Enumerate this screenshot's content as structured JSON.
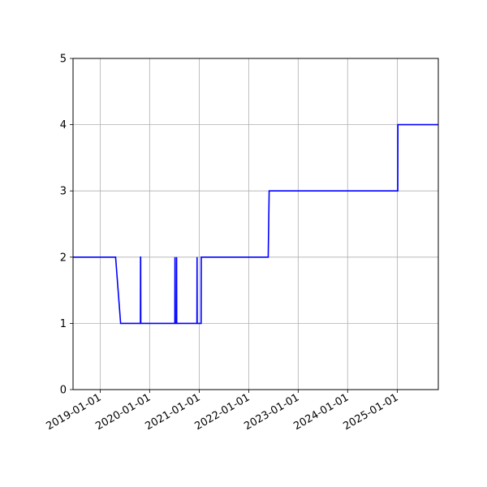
{
  "chart_data": {
    "type": "line",
    "title": "",
    "xlabel": "",
    "ylabel": "",
    "xlim": [
      "2018-06-15",
      "2025-10-31"
    ],
    "ylim": [
      0,
      5
    ],
    "x_tick_labels": [
      "2019-01-01",
      "2020-01-01",
      "2021-01-01",
      "2022-01-01",
      "2023-01-01",
      "2024-01-01",
      "2025-01-01"
    ],
    "y_tick_labels": [
      "0",
      "1",
      "2",
      "3",
      "4",
      "5"
    ],
    "grid": true,
    "legend": "none",
    "series": [
      {
        "color": "#0000ff",
        "x": [
          "2018-06-15",
          "2019-04-25",
          "2019-06-01",
          "2019-10-25",
          "2019-10-26",
          "2019-10-27",
          "2019-10-28",
          "2020-07-05",
          "2020-07-06",
          "2020-07-07",
          "2020-07-17",
          "2020-07-18",
          "2020-07-19",
          "2020-12-15",
          "2020-12-16",
          "2020-12-17",
          "2021-01-15",
          "2021-01-16",
          "2022-05-25",
          "2022-06-01",
          "2025-01-05",
          "2025-01-06",
          "2025-10-31"
        ],
        "y": [
          2,
          2,
          1,
          1,
          2,
          2,
          1,
          1,
          2,
          1,
          1,
          2,
          1,
          1,
          2,
          1,
          1,
          2,
          2,
          3,
          3,
          4,
          4
        ]
      }
    ]
  }
}
